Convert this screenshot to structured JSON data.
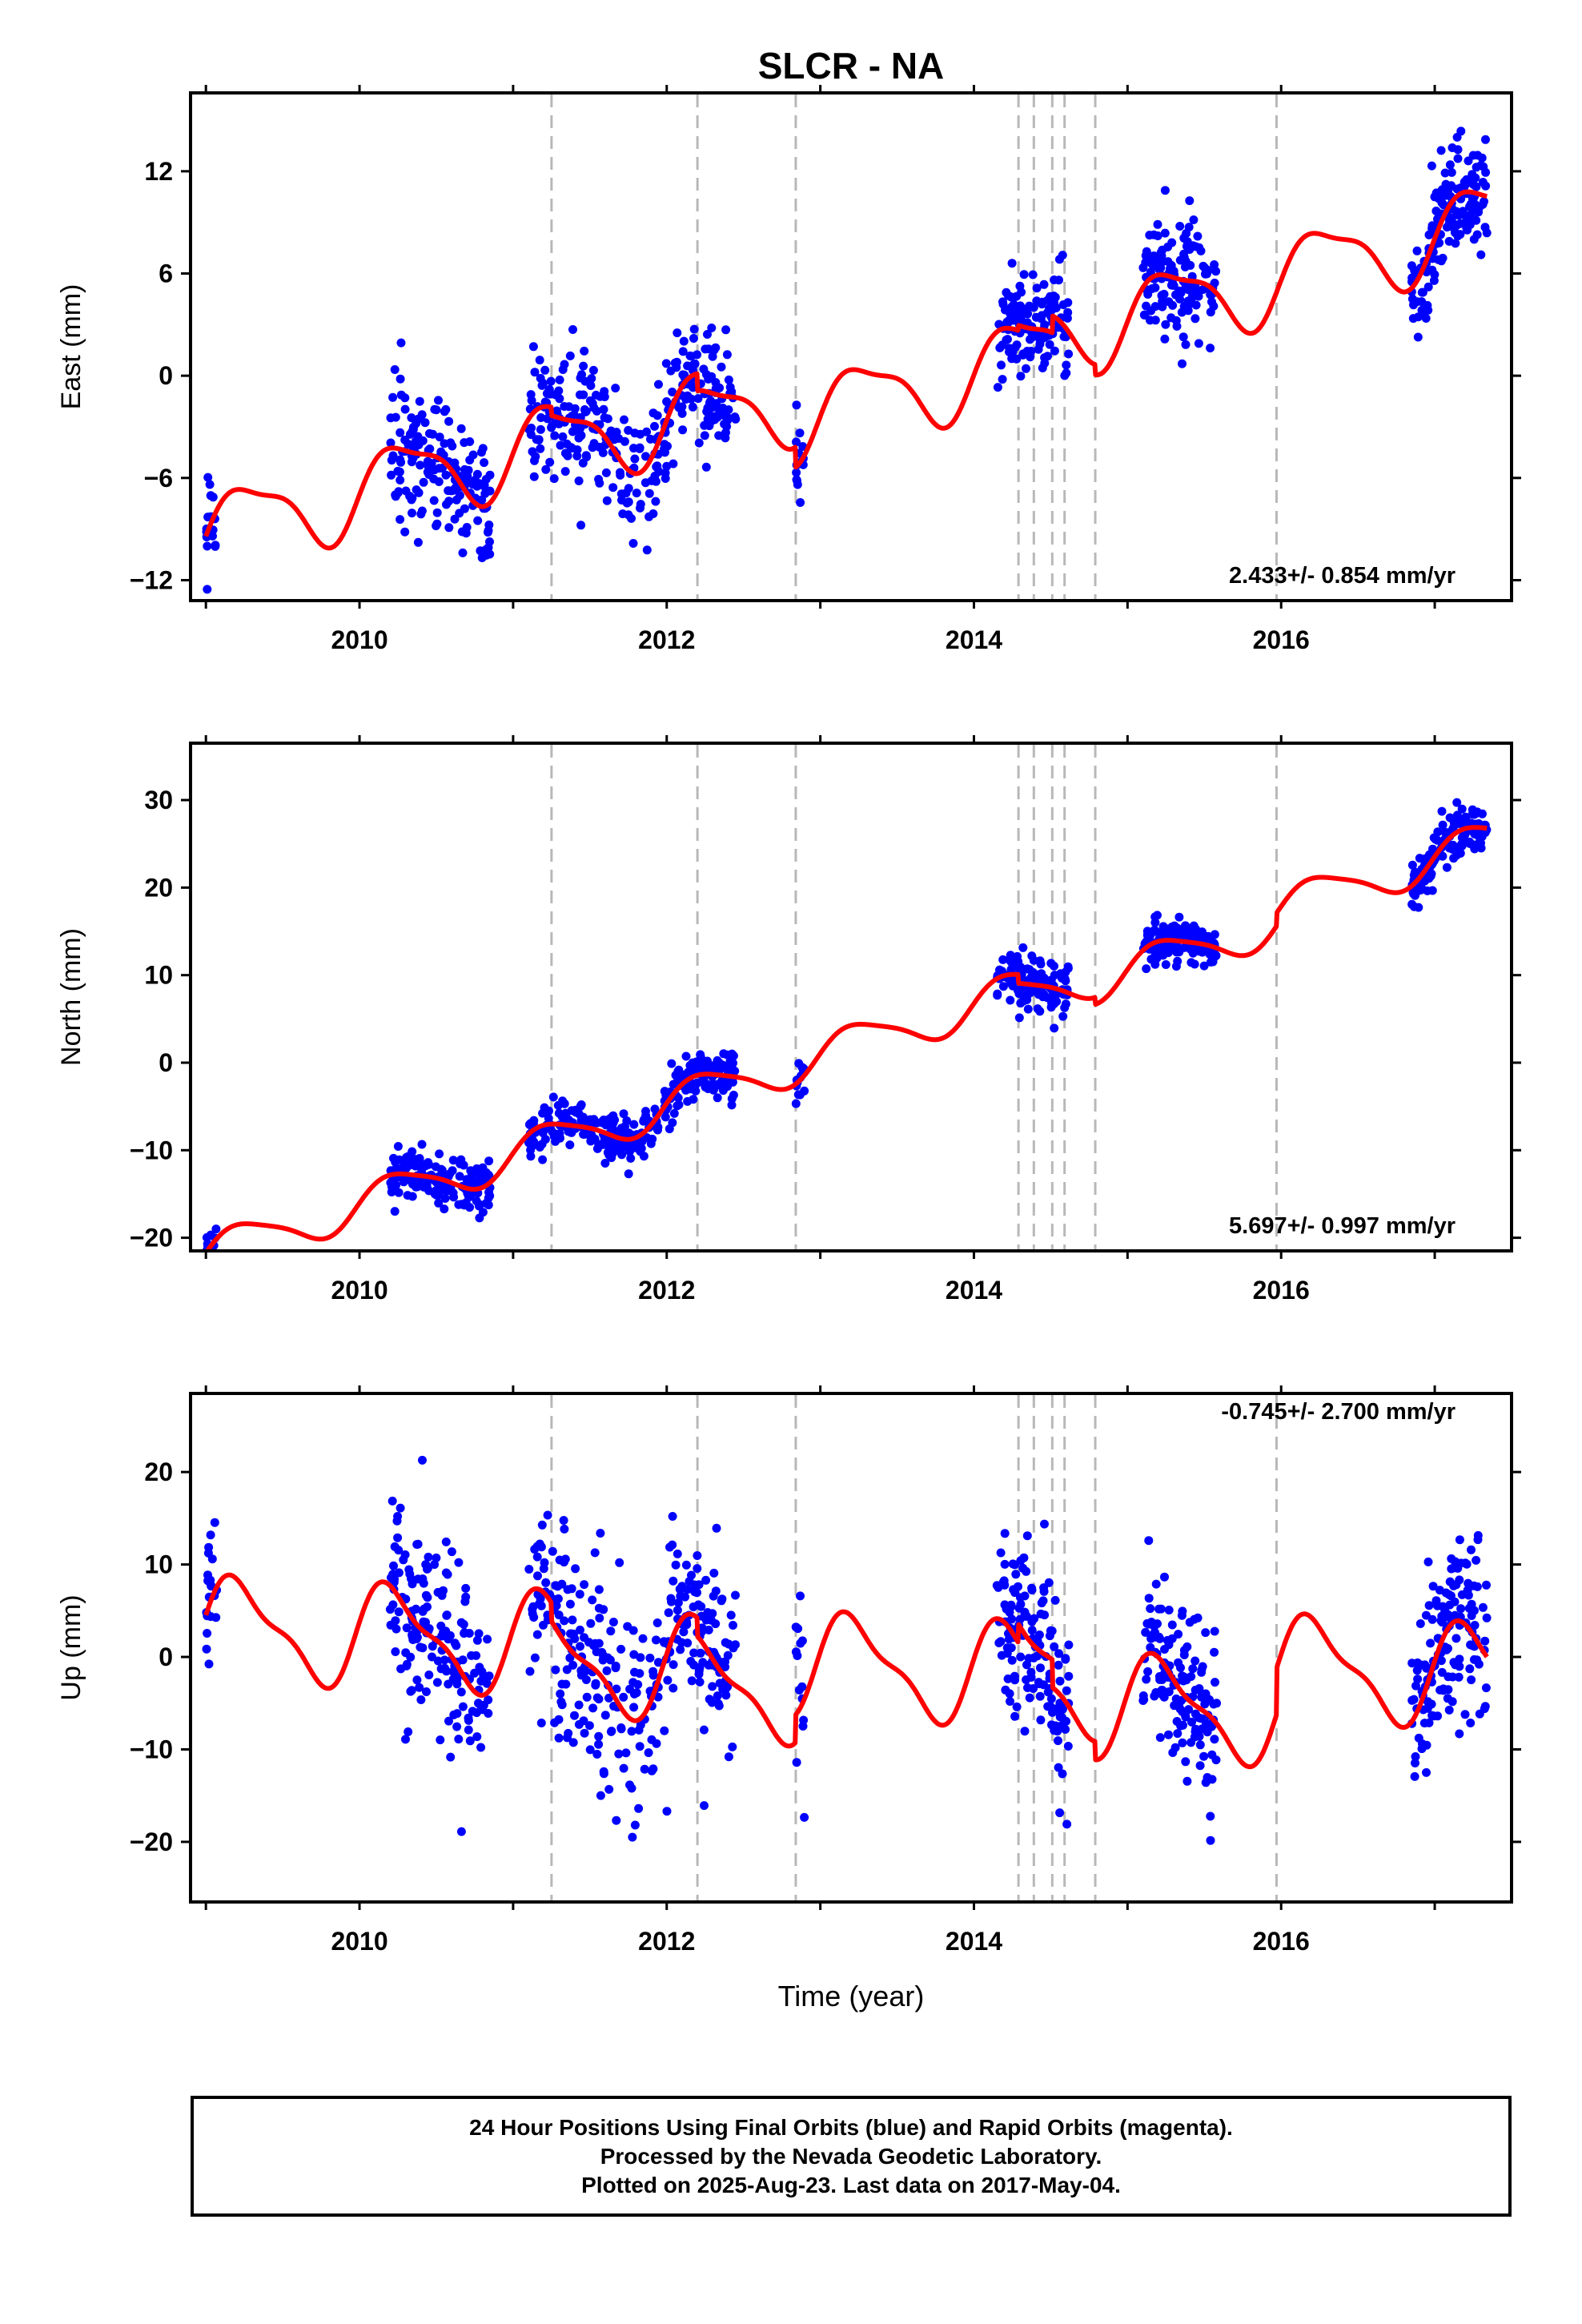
{
  "title": "SLCR - NA",
  "x_axis_label": "Time (year)",
  "colors": {
    "points": "#0000ff",
    "model": "#ff0000",
    "breaks": "#b8b8b8"
  },
  "chart_data": [
    {
      "type": "scatter",
      "panel": "east",
      "ylabel": "East (mm)",
      "rate_label": "2.433+/- 0.854 mm/yr",
      "xlim": [
        2008.9,
        2017.5
      ],
      "ylim": [
        -13.2,
        16.6
      ],
      "yticks": [
        -12,
        -6,
        0,
        6,
        12
      ],
      "xticks": [
        2010,
        2012,
        2014,
        2016
      ],
      "breaks": [
        2011.25,
        2012.2,
        2012.84,
        2014.29,
        2014.39,
        2014.51,
        2014.59,
        2014.79,
        2015.97
      ],
      "model": {
        "rate": 2.433,
        "ref_year": 2013.2,
        "offset": 1.0,
        "annual": [
          2.2,
          -0.5
        ],
        "semiannual": [
          0.6,
          0.3
        ],
        "steps": [
          [
            2011.25,
            -0.5
          ],
          [
            2012.2,
            -1.0
          ],
          [
            2012.84,
            -1.2
          ],
          [
            2014.29,
            0.3
          ],
          [
            2014.51,
            1.0
          ],
          [
            2014.79,
            -0.6
          ]
        ]
      },
      "data_segments": [
        {
          "start": 2009.0,
          "end": 2009.07,
          "n": 20,
          "scatter": 1.6
        },
        {
          "start": 2010.2,
          "end": 2010.85,
          "n": 170,
          "scatter": 1.9
        },
        {
          "start": 2011.1,
          "end": 2011.95,
          "n": 190,
          "scatter": 1.8
        },
        {
          "start": 2011.98,
          "end": 2012.45,
          "n": 120,
          "scatter": 1.6
        },
        {
          "start": 2012.84,
          "end": 2012.9,
          "n": 14,
          "scatter": 1.5
        },
        {
          "start": 2014.15,
          "end": 2014.62,
          "n": 140,
          "scatter": 1.5
        },
        {
          "start": 2015.1,
          "end": 2015.58,
          "n": 140,
          "scatter": 1.7
        },
        {
          "start": 2016.85,
          "end": 2017.34,
          "n": 150,
          "scatter": 1.6
        }
      ]
    },
    {
      "type": "scatter",
      "panel": "north",
      "ylabel": "North (mm)",
      "rate_label": "5.697+/- 0.997 mm/yr",
      "xlim": [
        2008.9,
        2017.5
      ],
      "ylim": [
        -21.5,
        36.5
      ],
      "yticks": [
        -20,
        -10,
        0,
        10,
        20,
        30
      ],
      "xticks": [
        2010,
        2012,
        2014,
        2016
      ],
      "breaks": [
        2011.25,
        2012.2,
        2012.84,
        2014.29,
        2014.39,
        2014.51,
        2014.59,
        2014.79,
        2015.97
      ],
      "model": {
        "rate": 5.697,
        "ref_year": 2013.2,
        "offset": 2.0,
        "annual": [
          2.3,
          0.0
        ],
        "semiannual": [
          0.4,
          0.2
        ],
        "steps": [
          [
            2014.29,
            -1.0
          ],
          [
            2014.79,
            -0.8
          ],
          [
            2015.97,
            1.5
          ]
        ]
      },
      "data_segments": [
        {
          "start": 2009.0,
          "end": 2009.07,
          "n": 20,
          "scatter": 1.2
        },
        {
          "start": 2010.2,
          "end": 2010.85,
          "n": 170,
          "scatter": 1.4
        },
        {
          "start": 2011.1,
          "end": 2011.95,
          "n": 190,
          "scatter": 1.4
        },
        {
          "start": 2011.98,
          "end": 2012.45,
          "n": 120,
          "scatter": 1.3
        },
        {
          "start": 2012.84,
          "end": 2012.9,
          "n": 14,
          "scatter": 1.5
        },
        {
          "start": 2014.15,
          "end": 2014.62,
          "n": 140,
          "scatter": 1.4
        },
        {
          "start": 2015.1,
          "end": 2015.58,
          "n": 140,
          "scatter": 1.3
        },
        {
          "start": 2016.85,
          "end": 2017.34,
          "n": 150,
          "scatter": 1.4
        }
      ]
    },
    {
      "type": "scatter",
      "panel": "up",
      "ylabel": "Up (mm)",
      "rate_label": "-0.745+/- 2.700 mm/yr",
      "xlim": [
        2008.9,
        2017.5
      ],
      "ylim": [
        -26.5,
        28.5
      ],
      "yticks": [
        -20,
        -10,
        0,
        10,
        20
      ],
      "xticks": [
        2010,
        2012,
        2014,
        2016
      ],
      "breaks": [
        2011.25,
        2012.2,
        2012.84,
        2014.29,
        2014.39,
        2014.51,
        2014.59,
        2014.79,
        2015.97
      ],
      "model": {
        "rate": -0.745,
        "ref_year": 2013.2,
        "offset": 0.0,
        "annual": [
          5.0,
          0.8
        ],
        "semiannual": [
          1.6,
          0.6
        ],
        "steps": [
          [
            2011.25,
            -2.0
          ],
          [
            2012.2,
            -2.0
          ],
          [
            2012.84,
            3.0
          ],
          [
            2014.29,
            2.0
          ],
          [
            2014.51,
            -3.0
          ],
          [
            2014.79,
            -2.0
          ],
          [
            2015.97,
            5.0
          ]
        ]
      },
      "data_segments": [
        {
          "start": 2009.0,
          "end": 2009.07,
          "n": 20,
          "scatter": 4.0
        },
        {
          "start": 2010.2,
          "end": 2010.85,
          "n": 170,
          "scatter": 5.5
        },
        {
          "start": 2011.1,
          "end": 2011.95,
          "n": 190,
          "scatter": 5.5
        },
        {
          "start": 2011.98,
          "end": 2012.45,
          "n": 120,
          "scatter": 5.0
        },
        {
          "start": 2012.84,
          "end": 2012.9,
          "n": 14,
          "scatter": 6.0
        },
        {
          "start": 2014.15,
          "end": 2014.62,
          "n": 140,
          "scatter": 4.5
        },
        {
          "start": 2015.1,
          "end": 2015.58,
          "n": 140,
          "scatter": 4.5
        },
        {
          "start": 2016.85,
          "end": 2017.34,
          "n": 150,
          "scatter": 5.0
        }
      ]
    }
  ],
  "footer": {
    "line1": "24 Hour Positions Using Final Orbits (blue) and Rapid Orbits (magenta).",
    "line2": "Processed by the Nevada Geodetic Laboratory.",
    "line3": "Plotted on 2025-Aug-23. Last data on 2017-May-04."
  }
}
